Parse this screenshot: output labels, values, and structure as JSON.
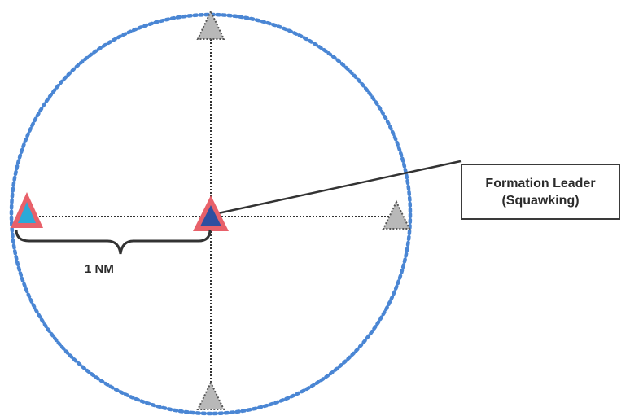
{
  "diagram": {
    "callout": {
      "line1": "Formation Leader",
      "line2": "(Squawking)"
    },
    "distance_label": "1 NM",
    "colors": {
      "circle": "#4a86d4",
      "leader_fill": "#2f4fa0",
      "leader_outline": "#e8616a",
      "wingman_fill": "#2ba9d8",
      "wingman_outline": "#e8616a",
      "ghost_fill": "#b8b8b8",
      "ghost_outline": "#555555",
      "line": "#333333"
    }
  }
}
